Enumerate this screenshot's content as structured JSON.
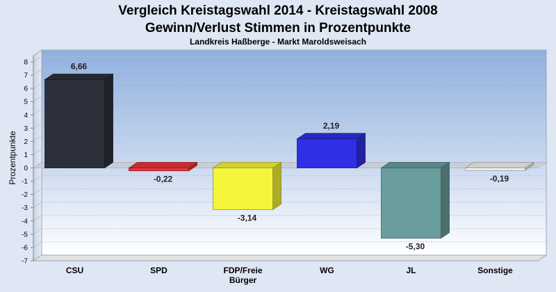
{
  "chart_data": {
    "type": "bar",
    "title_lines": [
      "Vergleich Kreistagswahl 2014 - Kreistagswahl 2008",
      "Gewinn/Verlust Stimmen in Prozentpunkte"
    ],
    "subtitle": "Landkreis Haßberge - Markt Maroldsweisach",
    "ylabel": "Prozentpunkte",
    "xlabel": "",
    "ylim": [
      -7,
      8
    ],
    "yticks": [
      "8",
      "7",
      "6",
      "5",
      "4",
      "3",
      "2",
      "1",
      "0",
      "-1",
      "-2",
      "-3",
      "-4",
      "-5",
      "-6",
      "-7"
    ],
    "categories": [
      [
        "CSU"
      ],
      [
        "SPD"
      ],
      [
        "FDP/Freie",
        "Bürger"
      ],
      [
        "WG"
      ],
      [
        "JL"
      ],
      [
        "Sonstige"
      ]
    ],
    "values": [
      6.66,
      -0.22,
      -3.14,
      2.19,
      -5.3,
      -0.19
    ],
    "value_labels": [
      "6,66",
      "-0,22",
      "-3,14",
      "2,19",
      "-5,30",
      "-0,19"
    ],
    "colors": [
      "#2b303b",
      "#e8343c",
      "#f5f53a",
      "#2f2fe6",
      "#699e9c",
      "#f4f4f4"
    ],
    "grid": true,
    "legend": "none"
  }
}
